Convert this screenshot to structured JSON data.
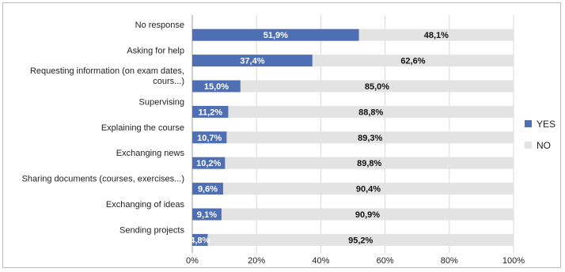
{
  "chart_data": {
    "type": "bar",
    "orientation": "horizontal",
    "stacked": true,
    "categories": [
      "No response",
      "Asking for help",
      [
        "Requesting information (on exam dates,",
        "cours...)"
      ],
      "Supervising",
      "Explaining the course",
      "Exchanging news",
      "Sharing documents (courses, exercises...)",
      "Exchanging of ideas",
      "Sending projects"
    ],
    "series": [
      {
        "name": "YES",
        "color": "#4f6fb5",
        "values": [
          51.9,
          37.4,
          15.0,
          11.2,
          10.7,
          10.2,
          9.6,
          9.1,
          4.8
        ],
        "labels": [
          "51,9%",
          "37,4%",
          "15,0%",
          "11,2%",
          "10,7%",
          "10,2%",
          "9,6%",
          "9,1%",
          "4,8%"
        ]
      },
      {
        "name": "NO",
        "color": "#e3e3e3",
        "values": [
          48.1,
          62.6,
          85.0,
          88.8,
          89.3,
          89.8,
          90.4,
          90.9,
          95.2
        ],
        "labels": [
          "48,1%",
          "62,6%",
          "85,0%",
          "88,8%",
          "89,3%",
          "89,8%",
          "90,4%",
          "90,9%",
          "95,2%"
        ]
      }
    ],
    "xlim": [
      0,
      100
    ],
    "x_ticks": [
      "0%",
      "20%",
      "40%",
      "60%",
      "80%",
      "100%"
    ],
    "legend": [
      "YES",
      "NO"
    ],
    "legend_position": "right",
    "grid": true
  }
}
